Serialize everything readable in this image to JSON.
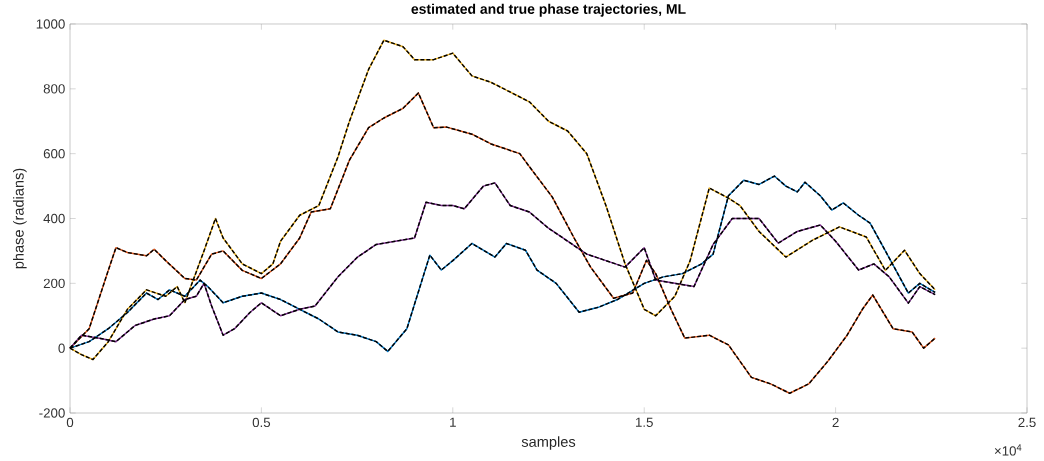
{
  "chart_data": {
    "type": "line",
    "title": "estimated and true phase trajectories, ML",
    "xlabel": "samples",
    "ylabel": "phase (radians)",
    "xlim": [
      0,
      2.5
    ],
    "ylim": [
      -200,
      1000
    ],
    "xticks": [
      0,
      0.5,
      1,
      1.5,
      2,
      2.5
    ],
    "yticks": [
      -200,
      0,
      200,
      400,
      600,
      800,
      1000
    ],
    "annotations": [
      "×10$^{4}$"
    ],
    "grid": false,
    "marker": "none",
    "series": [
      {
        "color": "#0072bd",
        "line_style": "solid",
        "x": [
          0,
          0.05,
          0.1,
          0.15,
          0.2,
          0.23,
          0.26,
          0.3,
          0.34,
          0.36,
          0.4,
          0.45,
          0.5,
          0.55,
          0.6,
          0.65,
          0.7,
          0.75,
          0.8,
          0.83,
          0.88,
          0.94,
          0.97,
          1.0,
          1.05,
          1.11,
          1.14,
          1.19,
          1.22,
          1.27,
          1.33,
          1.38,
          1.43,
          1.5,
          1.55,
          1.6,
          1.65,
          1.68,
          1.72,
          1.76,
          1.8,
          1.84,
          1.87,
          1.9,
          1.92,
          1.96,
          1.99,
          2.02,
          2.06,
          2.09,
          2.13,
          2.19,
          2.22,
          2.26
        ],
        "values": [
          0,
          20,
          60,
          110,
          170,
          150,
          180,
          160,
          210,
          190,
          140,
          160,
          170,
          150,
          120,
          90,
          50,
          40,
          20,
          -10,
          60,
          287,
          241,
          270,
          323,
          281,
          323,
          302,
          241,
          200,
          111,
          126,
          150,
          200,
          220,
          230,
          260,
          290,
          470,
          518,
          505,
          531,
          500,
          482,
          512,
          470,
          426,
          448,
          410,
          386,
          300,
          170,
          200,
          172
        ]
      },
      {
        "color": "#d95319",
        "line_style": "solid",
        "x": [
          0,
          0.05,
          0.1,
          0.12,
          0.15,
          0.2,
          0.22,
          0.25,
          0.3,
          0.33,
          0.37,
          0.4,
          0.45,
          0.5,
          0.55,
          0.6,
          0.63,
          0.68,
          0.73,
          0.78,
          0.82,
          0.87,
          0.91,
          0.95,
          0.984,
          1.05,
          1.1,
          1.175,
          1.2,
          1.26,
          1.32,
          1.36,
          1.42,
          1.47,
          1.506,
          1.53,
          1.57,
          1.606,
          1.67,
          1.72,
          1.75,
          1.78,
          1.83,
          1.88,
          1.93,
          1.98,
          2.03,
          2.07,
          2.097,
          2.15,
          2.2,
          2.23,
          2.26
        ],
        "values": [
          0,
          60,
          240,
          310,
          295,
          285,
          305,
          270,
          215,
          210,
          290,
          300,
          240,
          215,
          260,
          340,
          420,
          430,
          580,
          680,
          710,
          740,
          787,
          680,
          682,
          660,
          630,
          600,
          560,
          466,
          333,
          250,
          154,
          170,
          271,
          230,
          120,
          31,
          40,
          10,
          -40,
          -90,
          -110,
          -139,
          -110,
          -40,
          40,
          120,
          164,
          60,
          50,
          0,
          31
        ]
      },
      {
        "color": "#edb120",
        "line_style": "solid",
        "x": [
          0,
          0.03,
          0.06,
          0.1,
          0.15,
          0.2,
          0.25,
          0.28,
          0.3,
          0.35,
          0.38,
          0.4,
          0.45,
          0.5,
          0.53,
          0.55,
          0.6,
          0.65,
          0.7,
          0.73,
          0.78,
          0.82,
          0.87,
          0.9,
          0.95,
          1.0,
          1.05,
          1.1,
          1.15,
          1.2,
          1.25,
          1.3,
          1.35,
          1.4,
          1.45,
          1.5,
          1.53,
          1.58,
          1.62,
          1.67,
          1.72,
          1.75,
          1.8,
          1.87,
          1.94,
          2.01,
          2.08,
          2.13,
          2.18,
          2.22,
          2.26
        ],
        "values": [
          0,
          -20,
          -35,
          20,
          120,
          180,
          160,
          190,
          140,
          300,
          400,
          340,
          260,
          230,
          260,
          330,
          410,
          440,
          590,
          700,
          860,
          950,
          930,
          890,
          890,
          910,
          840,
          820,
          790,
          760,
          700,
          670,
          600,
          440,
          260,
          120,
          100,
          160,
          270,
          494,
          463,
          440,
          360,
          281,
          333,
          374,
          343,
          240,
          302,
          230,
          180
        ]
      },
      {
        "color": "#7e2f8e",
        "line_style": "solid",
        "x": [
          0,
          0.03,
          0.08,
          0.12,
          0.17,
          0.22,
          0.26,
          0.3,
          0.33,
          0.35,
          0.37,
          0.4,
          0.43,
          0.47,
          0.5,
          0.55,
          0.6,
          0.64,
          0.7,
          0.75,
          0.8,
          0.85,
          0.9,
          0.93,
          0.97,
          1.0,
          1.03,
          1.08,
          1.11,
          1.15,
          1.2,
          1.25,
          1.3,
          1.35,
          1.4,
          1.45,
          1.5,
          1.53,
          1.58,
          1.63,
          1.68,
          1.73,
          1.8,
          1.85,
          1.9,
          1.96,
          2.0,
          2.06,
          2.1,
          2.14,
          2.19,
          2.22,
          2.26
        ],
        "values": [
          0,
          40,
          30,
          20,
          70,
          90,
          100,
          150,
          160,
          200,
          130,
          40,
          60,
          110,
          140,
          100,
          120,
          130,
          220,
          280,
          320,
          330,
          340,
          450,
          440,
          440,
          430,
          500,
          510,
          440,
          420,
          370,
          330,
          290,
          270,
          250,
          310,
          210,
          200,
          190,
          320,
          400,
          400,
          324,
          360,
          380,
          330,
          241,
          260,
          220,
          139,
          190,
          165
        ]
      },
      {
        "color": "#000000",
        "line_style": "dashed",
        "x": [
          0,
          0.05,
          0.1,
          0.15,
          0.2,
          0.23,
          0.26,
          0.3,
          0.34,
          0.36,
          0.4,
          0.45,
          0.5,
          0.55,
          0.6,
          0.65,
          0.7,
          0.75,
          0.8,
          0.83,
          0.88,
          0.94,
          0.97,
          1.0,
          1.05,
          1.11,
          1.14,
          1.19,
          1.22,
          1.27,
          1.33,
          1.38,
          1.43,
          1.5,
          1.55,
          1.6,
          1.65,
          1.68,
          1.72,
          1.76,
          1.8,
          1.84,
          1.87,
          1.9,
          1.92,
          1.96,
          1.99,
          2.02,
          2.06,
          2.09,
          2.13,
          2.19,
          2.22,
          2.26
        ],
        "values": [
          0,
          20,
          60,
          110,
          170,
          150,
          180,
          160,
          210,
          190,
          140,
          160,
          170,
          150,
          120,
          90,
          50,
          40,
          20,
          -10,
          60,
          287,
          241,
          270,
          323,
          281,
          323,
          302,
          241,
          200,
          111,
          126,
          150,
          200,
          220,
          230,
          260,
          290,
          470,
          518,
          505,
          531,
          500,
          482,
          512,
          470,
          426,
          448,
          410,
          386,
          300,
          170,
          200,
          172
        ]
      },
      {
        "color": "#000000",
        "line_style": "dashed",
        "x": [
          0,
          0.05,
          0.1,
          0.12,
          0.15,
          0.2,
          0.22,
          0.25,
          0.3,
          0.33,
          0.37,
          0.4,
          0.45,
          0.5,
          0.55,
          0.6,
          0.63,
          0.68,
          0.73,
          0.78,
          0.82,
          0.87,
          0.91,
          0.95,
          0.984,
          1.05,
          1.1,
          1.175,
          1.2,
          1.26,
          1.32,
          1.36,
          1.42,
          1.47,
          1.506,
          1.53,
          1.57,
          1.606,
          1.67,
          1.72,
          1.75,
          1.78,
          1.83,
          1.88,
          1.93,
          1.98,
          2.03,
          2.07,
          2.097,
          2.15,
          2.2,
          2.23,
          2.26
        ],
        "values": [
          0,
          60,
          240,
          310,
          295,
          285,
          305,
          270,
          215,
          210,
          290,
          300,
          240,
          215,
          260,
          340,
          420,
          430,
          580,
          680,
          710,
          740,
          787,
          680,
          682,
          660,
          630,
          600,
          560,
          466,
          333,
          250,
          154,
          170,
          271,
          230,
          120,
          31,
          40,
          10,
          -40,
          -90,
          -110,
          -139,
          -110,
          -40,
          40,
          120,
          164,
          60,
          50,
          0,
          31
        ]
      },
      {
        "color": "#000000",
        "line_style": "dashed",
        "x": [
          0,
          0.03,
          0.06,
          0.1,
          0.15,
          0.2,
          0.25,
          0.28,
          0.3,
          0.35,
          0.38,
          0.4,
          0.45,
          0.5,
          0.53,
          0.55,
          0.6,
          0.65,
          0.7,
          0.73,
          0.78,
          0.82,
          0.87,
          0.9,
          0.95,
          1.0,
          1.05,
          1.1,
          1.15,
          1.2,
          1.25,
          1.3,
          1.35,
          1.4,
          1.45,
          1.5,
          1.53,
          1.58,
          1.62,
          1.67,
          1.72,
          1.75,
          1.8,
          1.87,
          1.94,
          2.01,
          2.08,
          2.13,
          2.18,
          2.22,
          2.26
        ],
        "values": [
          0,
          -20,
          -35,
          20,
          120,
          180,
          160,
          190,
          140,
          300,
          400,
          340,
          260,
          230,
          260,
          330,
          410,
          440,
          590,
          700,
          860,
          950,
          930,
          890,
          890,
          910,
          840,
          820,
          790,
          760,
          700,
          670,
          600,
          440,
          260,
          120,
          100,
          160,
          270,
          494,
          463,
          440,
          360,
          281,
          333,
          374,
          343,
          240,
          302,
          230,
          180
        ]
      },
      {
        "color": "#000000",
        "line_style": "dashed",
        "x": [
          0,
          0.03,
          0.08,
          0.12,
          0.17,
          0.22,
          0.26,
          0.3,
          0.33,
          0.35,
          0.37,
          0.4,
          0.43,
          0.47,
          0.5,
          0.55,
          0.6,
          0.64,
          0.7,
          0.75,
          0.8,
          0.85,
          0.9,
          0.93,
          0.97,
          1.0,
          1.03,
          1.08,
          1.11,
          1.15,
          1.2,
          1.25,
          1.3,
          1.35,
          1.4,
          1.45,
          1.5,
          1.53,
          1.58,
          1.63,
          1.68,
          1.73,
          1.8,
          1.85,
          1.9,
          1.96,
          2.0,
          2.06,
          2.1,
          2.14,
          2.19,
          2.22,
          2.26
        ],
        "values": [
          0,
          40,
          30,
          20,
          70,
          90,
          100,
          150,
          160,
          200,
          130,
          40,
          60,
          110,
          140,
          100,
          120,
          130,
          220,
          280,
          320,
          330,
          340,
          450,
          440,
          440,
          430,
          500,
          510,
          440,
          420,
          370,
          330,
          290,
          270,
          250,
          310,
          210,
          200,
          190,
          320,
          400,
          400,
          324,
          360,
          380,
          330,
          241,
          260,
          220,
          139,
          190,
          165
        ]
      }
    ]
  }
}
